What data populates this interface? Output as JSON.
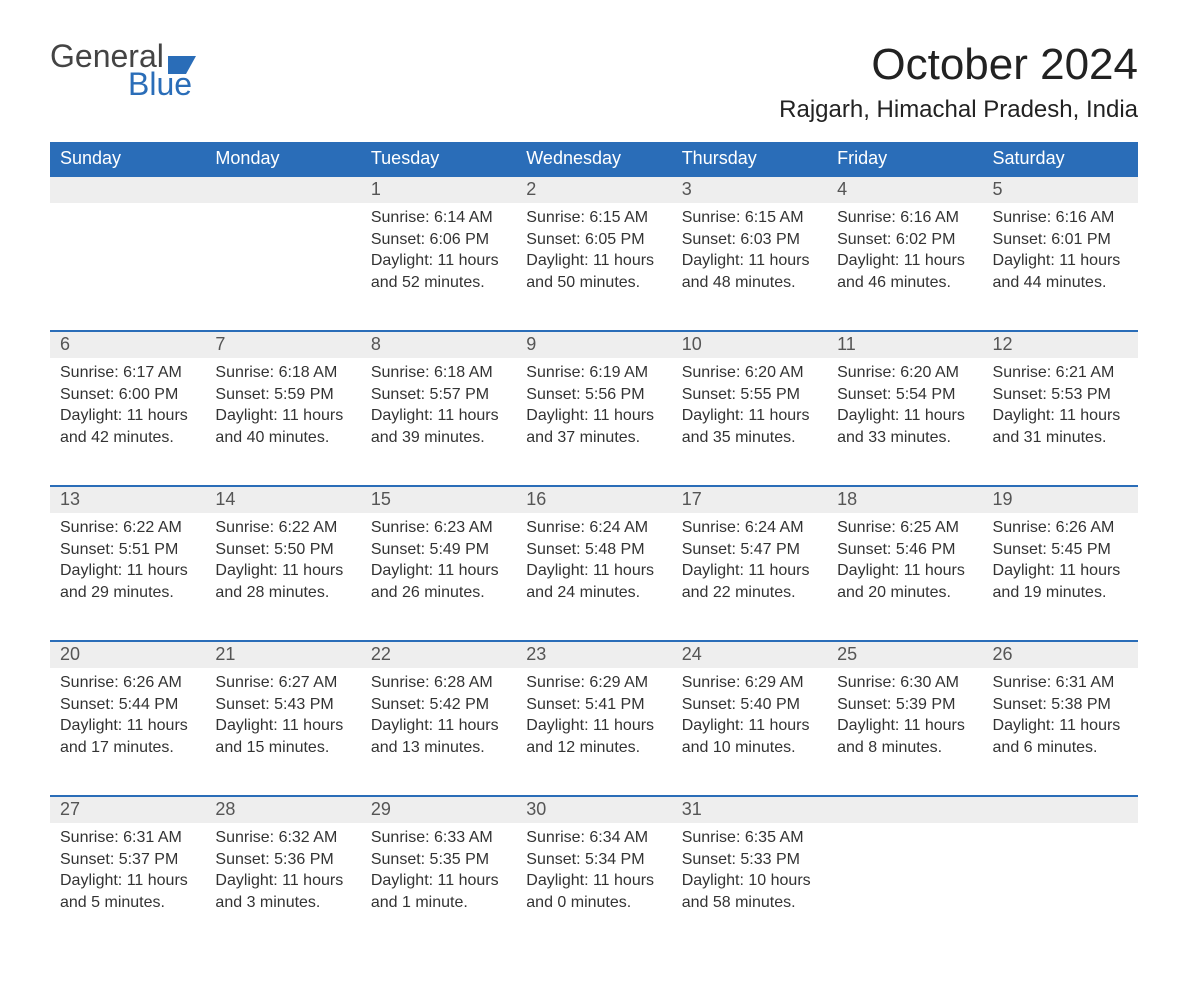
{
  "brand": {
    "top": "General",
    "bottom": "Blue"
  },
  "title": "October 2024",
  "location": "Rajgarh, Himachal Pradesh, India",
  "colors": {
    "header_bg": "#2a6db8",
    "header_text": "#ffffff",
    "daynum_bg": "#eeeeee",
    "row_border": "#2a6db8",
    "text": "#333333",
    "logo_accent": "#2a6db8"
  },
  "layout": {
    "columns": 7,
    "weeks": 5,
    "first_day_column_index": 2
  },
  "day_headers": [
    "Sunday",
    "Monday",
    "Tuesday",
    "Wednesday",
    "Thursday",
    "Friday",
    "Saturday"
  ],
  "days": [
    {
      "n": 1,
      "sunrise": "6:14 AM",
      "sunset": "6:06 PM",
      "daylight": "11 hours and 52 minutes."
    },
    {
      "n": 2,
      "sunrise": "6:15 AM",
      "sunset": "6:05 PM",
      "daylight": "11 hours and 50 minutes."
    },
    {
      "n": 3,
      "sunrise": "6:15 AM",
      "sunset": "6:03 PM",
      "daylight": "11 hours and 48 minutes."
    },
    {
      "n": 4,
      "sunrise": "6:16 AM",
      "sunset": "6:02 PM",
      "daylight": "11 hours and 46 minutes."
    },
    {
      "n": 5,
      "sunrise": "6:16 AM",
      "sunset": "6:01 PM",
      "daylight": "11 hours and 44 minutes."
    },
    {
      "n": 6,
      "sunrise": "6:17 AM",
      "sunset": "6:00 PM",
      "daylight": "11 hours and 42 minutes."
    },
    {
      "n": 7,
      "sunrise": "6:18 AM",
      "sunset": "5:59 PM",
      "daylight": "11 hours and 40 minutes."
    },
    {
      "n": 8,
      "sunrise": "6:18 AM",
      "sunset": "5:57 PM",
      "daylight": "11 hours and 39 minutes."
    },
    {
      "n": 9,
      "sunrise": "6:19 AM",
      "sunset": "5:56 PM",
      "daylight": "11 hours and 37 minutes."
    },
    {
      "n": 10,
      "sunrise": "6:20 AM",
      "sunset": "5:55 PM",
      "daylight": "11 hours and 35 minutes."
    },
    {
      "n": 11,
      "sunrise": "6:20 AM",
      "sunset": "5:54 PM",
      "daylight": "11 hours and 33 minutes."
    },
    {
      "n": 12,
      "sunrise": "6:21 AM",
      "sunset": "5:53 PM",
      "daylight": "11 hours and 31 minutes."
    },
    {
      "n": 13,
      "sunrise": "6:22 AM",
      "sunset": "5:51 PM",
      "daylight": "11 hours and 29 minutes."
    },
    {
      "n": 14,
      "sunrise": "6:22 AM",
      "sunset": "5:50 PM",
      "daylight": "11 hours and 28 minutes."
    },
    {
      "n": 15,
      "sunrise": "6:23 AM",
      "sunset": "5:49 PM",
      "daylight": "11 hours and 26 minutes."
    },
    {
      "n": 16,
      "sunrise": "6:24 AM",
      "sunset": "5:48 PM",
      "daylight": "11 hours and 24 minutes."
    },
    {
      "n": 17,
      "sunrise": "6:24 AM",
      "sunset": "5:47 PM",
      "daylight": "11 hours and 22 minutes."
    },
    {
      "n": 18,
      "sunrise": "6:25 AM",
      "sunset": "5:46 PM",
      "daylight": "11 hours and 20 minutes."
    },
    {
      "n": 19,
      "sunrise": "6:26 AM",
      "sunset": "5:45 PM",
      "daylight": "11 hours and 19 minutes."
    },
    {
      "n": 20,
      "sunrise": "6:26 AM",
      "sunset": "5:44 PM",
      "daylight": "11 hours and 17 minutes."
    },
    {
      "n": 21,
      "sunrise": "6:27 AM",
      "sunset": "5:43 PM",
      "daylight": "11 hours and 15 minutes."
    },
    {
      "n": 22,
      "sunrise": "6:28 AM",
      "sunset": "5:42 PM",
      "daylight": "11 hours and 13 minutes."
    },
    {
      "n": 23,
      "sunrise": "6:29 AM",
      "sunset": "5:41 PM",
      "daylight": "11 hours and 12 minutes."
    },
    {
      "n": 24,
      "sunrise": "6:29 AM",
      "sunset": "5:40 PM",
      "daylight": "11 hours and 10 minutes."
    },
    {
      "n": 25,
      "sunrise": "6:30 AM",
      "sunset": "5:39 PM",
      "daylight": "11 hours and 8 minutes."
    },
    {
      "n": 26,
      "sunrise": "6:31 AM",
      "sunset": "5:38 PM",
      "daylight": "11 hours and 6 minutes."
    },
    {
      "n": 27,
      "sunrise": "6:31 AM",
      "sunset": "5:37 PM",
      "daylight": "11 hours and 5 minutes."
    },
    {
      "n": 28,
      "sunrise": "6:32 AM",
      "sunset": "5:36 PM",
      "daylight": "11 hours and 3 minutes."
    },
    {
      "n": 29,
      "sunrise": "6:33 AM",
      "sunset": "5:35 PM",
      "daylight": "11 hours and 1 minute."
    },
    {
      "n": 30,
      "sunrise": "6:34 AM",
      "sunset": "5:34 PM",
      "daylight": "11 hours and 0 minutes."
    },
    {
      "n": 31,
      "sunrise": "6:35 AM",
      "sunset": "5:33 PM",
      "daylight": "10 hours and 58 minutes."
    }
  ],
  "labels": {
    "sunrise": "Sunrise:",
    "sunset": "Sunset:",
    "daylight": "Daylight:"
  }
}
